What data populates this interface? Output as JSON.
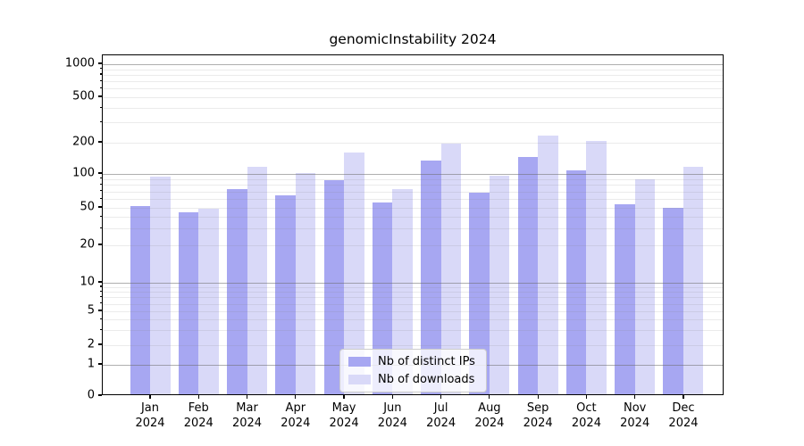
{
  "chart_data": {
    "type": "bar",
    "title": "genomicInstability 2024",
    "categories": [
      "Jan",
      "Feb",
      "Mar",
      "Apr",
      "May",
      "Jun",
      "Jul",
      "Aug",
      "Sep",
      "Oct",
      "Nov",
      "Dec"
    ],
    "category_year": "2024",
    "series": [
      {
        "name": "Nb of distinct IPs",
        "color": "#a7a7f2",
        "values": [
          52,
          45,
          74,
          65,
          88,
          56,
          135,
          68,
          145,
          108,
          54,
          50
        ]
      },
      {
        "name": "Nb of downloads",
        "color": "#d9d9f8",
        "values": [
          95,
          49,
          118,
          101,
          160,
          74,
          198,
          97,
          232,
          206,
          89,
          118
        ]
      }
    ],
    "xlabel": "",
    "ylabel": "",
    "yscale": "symlog",
    "yticks": [
      0,
      1,
      2,
      5,
      10,
      20,
      50,
      100,
      200,
      500,
      1000
    ],
    "ylim": [
      0,
      1200
    ],
    "grid": {
      "on": true,
      "major": [
        1,
        10,
        100,
        1000
      ],
      "minor": [
        2,
        3,
        4,
        5,
        6,
        7,
        8,
        9,
        20,
        30,
        40,
        50,
        60,
        70,
        80,
        90,
        200,
        300,
        400,
        500,
        600,
        700,
        800,
        900
      ]
    },
    "legend_position": "lower center"
  },
  "colors": {
    "background": "#ffffff",
    "spine": "#000000",
    "grid_major": "rgba(110,110,110,0.55)",
    "grid_minor": "rgba(128,128,128,0.16)",
    "text": "#000000"
  }
}
